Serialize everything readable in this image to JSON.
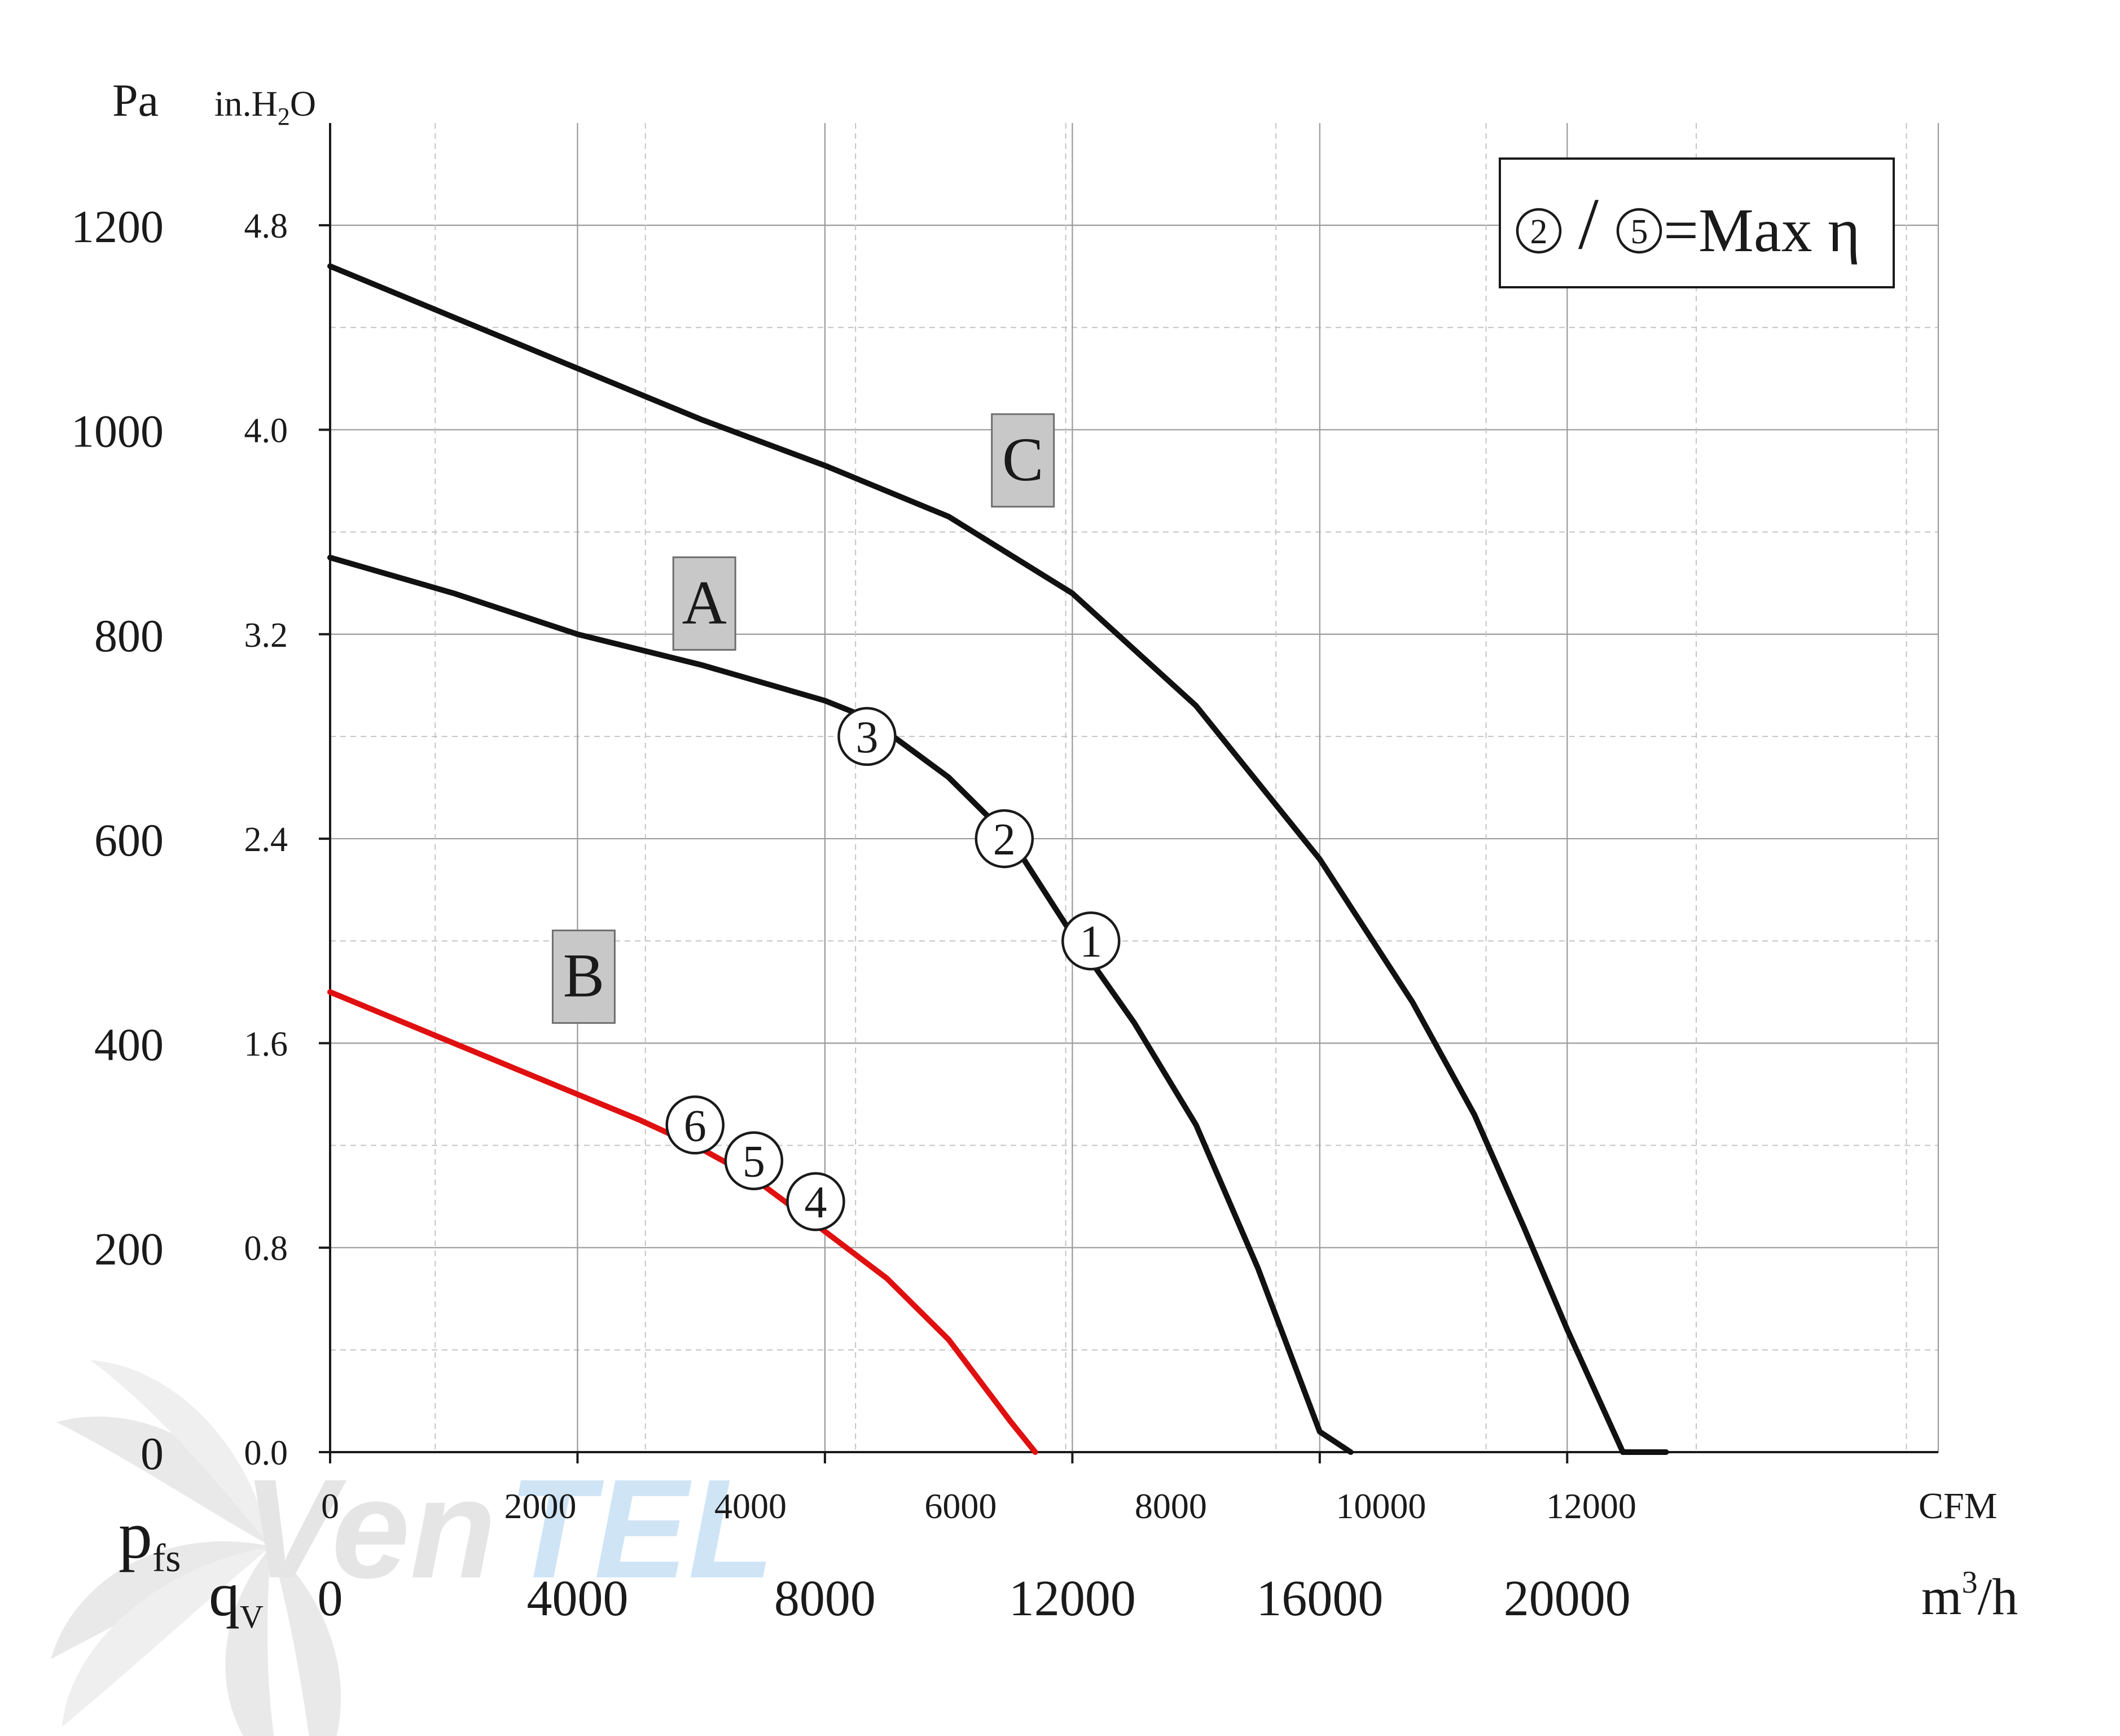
{
  "chart_data": {
    "type": "line",
    "y_axes": {
      "pa_label": "Pa",
      "inh2o_label_prefix": "in.H",
      "inh2o_label_sub": "2",
      "inh2o_label_suffix": "O",
      "pa_ticks": [
        "0",
        "200",
        "400",
        "600",
        "800",
        "1000",
        "1200"
      ],
      "inh2o_ticks": [
        "0.0",
        "0.8",
        "1.6",
        "2.4",
        "3.2",
        "4.0",
        "4.8"
      ],
      "pa_range": [
        0,
        1300
      ],
      "symbol_main": "p",
      "symbol_sub": "fs"
    },
    "x_axes": {
      "m3h_range": [
        0,
        26000
      ],
      "cfm_ticks": [
        "0",
        "2000",
        "4000",
        "6000",
        "8000",
        "10000",
        "12000"
      ],
      "cfm_values": [
        0,
        2000,
        4000,
        6000,
        8000,
        10000,
        12000
      ],
      "cfm_unit": "CFM",
      "m3h_ticks": [
        "0",
        "4000",
        "8000",
        "12000",
        "16000",
        "20000"
      ],
      "m3h_values": [
        0,
        4000,
        8000,
        12000,
        16000,
        20000
      ],
      "m3h_unit_base": "m",
      "m3h_unit_sup": "3",
      "m3h_unit_suffix": "/h",
      "symbol_main": "q",
      "symbol_sub": "V"
    },
    "grid": true,
    "legend": {
      "text": "=Max η",
      "circled_1": "2",
      "circled_2": "5",
      "separator": "/",
      "placement": "top-right"
    },
    "series": [
      {
        "name": "C",
        "color": "#111111",
        "x": [
          0,
          2000,
          4000,
          6000,
          8000,
          10000,
          12000,
          14000,
          16000,
          17500,
          18500,
          19300,
          20000,
          20900,
          21600
        ],
        "y": [
          1160,
          1110,
          1060,
          1010,
          965,
          915,
          840,
          730,
          580,
          440,
          330,
          220,
          120,
          0,
          -10
        ]
      },
      {
        "name": "A",
        "color": "#111111",
        "x": [
          0,
          2000,
          4000,
          6000,
          8000,
          8700,
          10000,
          11000,
          12000,
          13000,
          14000,
          15000,
          16000,
          16500
        ],
        "y": [
          875,
          840,
          800,
          770,
          735,
          718,
          660,
          600,
          506,
          420,
          320,
          180,
          20,
          -10
        ]
      },
      {
        "name": "B",
        "color": "#e01010",
        "x": [
          0,
          1000,
          2000,
          3000,
          4000,
          5000,
          5900,
          6800,
          7800,
          9000,
          10000,
          11000,
          11400
        ],
        "y": [
          450,
          425,
          400,
          375,
          350,
          325,
          300,
          270,
          225,
          170,
          110,
          30,
          0
        ]
      }
    ],
    "series_label_boxes": [
      {
        "text": "C",
        "x": 11200,
        "y": 970
      },
      {
        "text": "A",
        "x": 6050,
        "y": 830
      },
      {
        "text": "B",
        "x": 4100,
        "y": 465
      }
    ],
    "operating_points": [
      {
        "label": "1",
        "x": 12300,
        "y": 500
      },
      {
        "label": "2",
        "x": 10900,
        "y": 600
      },
      {
        "label": "3",
        "x": 8680,
        "y": 700
      },
      {
        "label": "4",
        "x": 7850,
        "y": 245
      },
      {
        "label": "5",
        "x": 6850,
        "y": 285
      },
      {
        "label": "6",
        "x": 5900,
        "y": 320
      }
    ]
  },
  "watermark": "VenTEL"
}
